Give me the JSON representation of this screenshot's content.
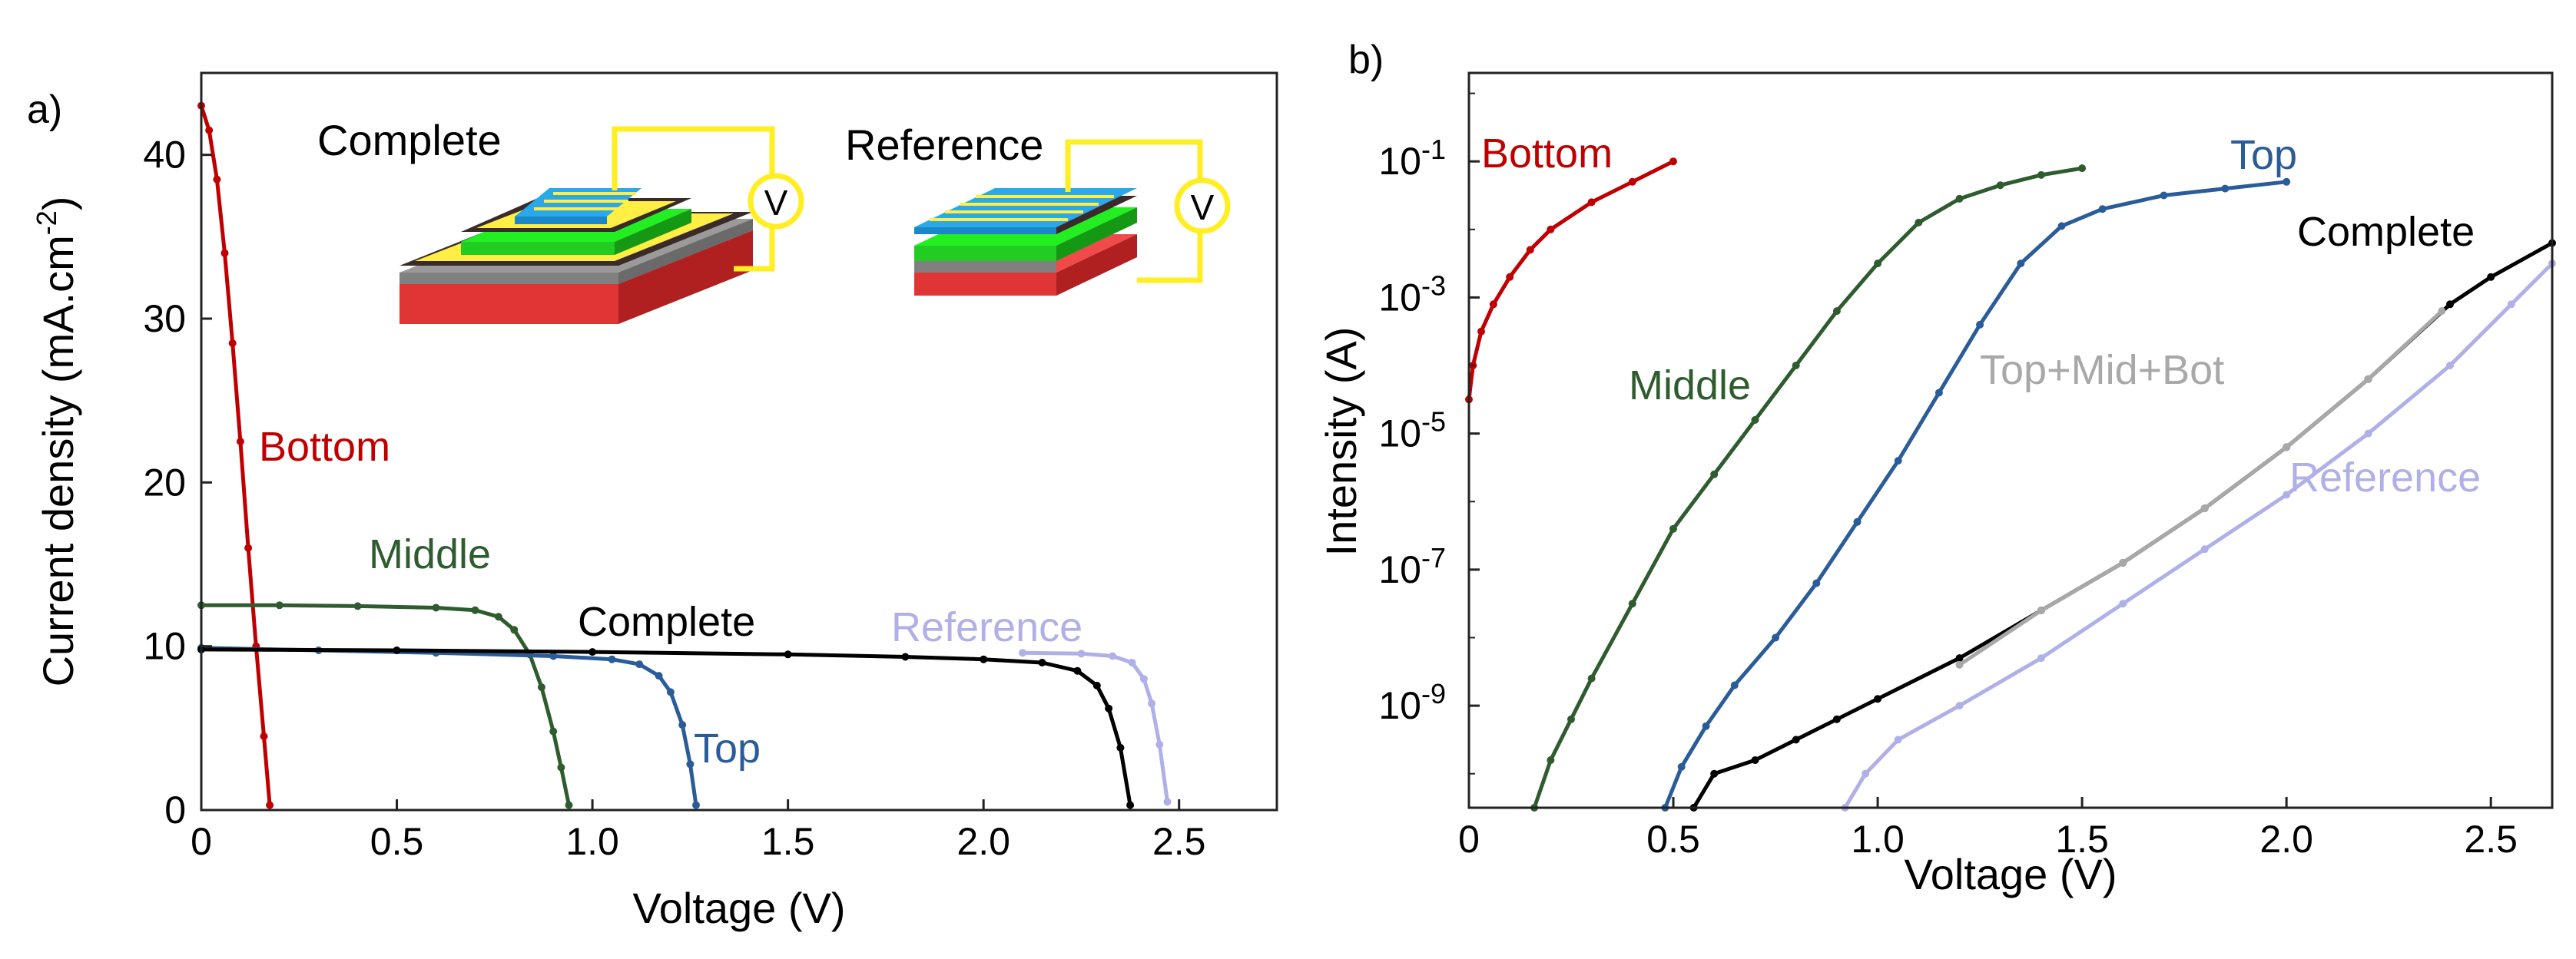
{
  "chart_data": [
    {
      "type": "line",
      "panel_label": "a)",
      "xlabel": "Voltage (V)",
      "ylabel_main": "Current density (mA.cm",
      "ylabel_sup": "-2",
      "ylabel_end": ")",
      "xlim": [
        0,
        2.75
      ],
      "ylim": [
        0,
        45
      ],
      "xticks": [
        0,
        0.5,
        1.0,
        1.5,
        2.0,
        2.5
      ],
      "xtick_labels": [
        "0",
        "0.5",
        "1.0",
        "1.5",
        "2.0",
        "2.5"
      ],
      "yticks": [
        0,
        10,
        20,
        30,
        40
      ],
      "ytick_labels": [
        "0",
        "10",
        "20",
        "30",
        "40"
      ],
      "series": [
        {
          "name": "Bottom",
          "color": "#c00000",
          "points": [
            [
              0,
              43.0
            ],
            [
              0.02,
              41.5
            ],
            [
              0.04,
              38.5
            ],
            [
              0.06,
              34.0
            ],
            [
              0.08,
              28.5
            ],
            [
              0.1,
              22.5
            ],
            [
              0.12,
              16.0
            ],
            [
              0.14,
              10.0
            ],
            [
              0.16,
              4.5
            ],
            [
              0.175,
              0.3
            ]
          ]
        },
        {
          "name": "Middle",
          "color": "#2e5c2e",
          "points": [
            [
              0,
              12.5
            ],
            [
              0.2,
              12.5
            ],
            [
              0.4,
              12.45
            ],
            [
              0.6,
              12.35
            ],
            [
              0.7,
              12.2
            ],
            [
              0.76,
              11.8
            ],
            [
              0.8,
              11.0
            ],
            [
              0.84,
              9.5
            ],
            [
              0.87,
              7.5
            ],
            [
              0.9,
              4.8
            ],
            [
              0.92,
              2.6
            ],
            [
              0.94,
              0.3
            ]
          ]
        },
        {
          "name": "Top",
          "color": "#2a5c9a",
          "points": [
            [
              0,
              9.9
            ],
            [
              0.3,
              9.75
            ],
            [
              0.6,
              9.6
            ],
            [
              0.9,
              9.4
            ],
            [
              1.05,
              9.2
            ],
            [
              1.12,
              8.9
            ],
            [
              1.17,
              8.2
            ],
            [
              1.2,
              7.2
            ],
            [
              1.23,
              5.2
            ],
            [
              1.25,
              2.8
            ],
            [
              1.265,
              0.3
            ]
          ]
        },
        {
          "name": "Complete",
          "color": "#000000",
          "points": [
            [
              0,
              9.8
            ],
            [
              0.5,
              9.75
            ],
            [
              1.0,
              9.65
            ],
            [
              1.5,
              9.5
            ],
            [
              1.8,
              9.35
            ],
            [
              2.0,
              9.2
            ],
            [
              2.15,
              9.0
            ],
            [
              2.24,
              8.5
            ],
            [
              2.29,
              7.6
            ],
            [
              2.32,
              6.2
            ],
            [
              2.35,
              3.8
            ],
            [
              2.375,
              0.3
            ]
          ]
        },
        {
          "name": "Reference",
          "color": "#b0b0e8",
          "points": [
            [
              2.1,
              9.6
            ],
            [
              2.25,
              9.55
            ],
            [
              2.33,
              9.4
            ],
            [
              2.38,
              9.0
            ],
            [
              2.41,
              8.0
            ],
            [
              2.43,
              6.5
            ],
            [
              2.45,
              4.0
            ],
            [
              2.47,
              0.5
            ]
          ]
        }
      ],
      "series_labels": {
        "bottom": "Bottom",
        "middle": "Middle",
        "complete": "Complete",
        "reference": "Reference",
        "top": "Top"
      },
      "inset": {
        "complete_label": "Complete",
        "reference_label": "Reference",
        "voltmeter_symbol": "V"
      }
    },
    {
      "type": "line",
      "panel_label": "b)",
      "xlabel": "Voltage (V)",
      "ylabel": "Intensity (A)",
      "xlim": [
        0,
        2.65
      ],
      "ylim_log10": [
        -10.5,
        0.3
      ],
      "xticks": [
        0,
        0.5,
        1.0,
        1.5,
        2.0,
        2.5
      ],
      "xtick_labels": [
        "0",
        "0.5",
        "1.0",
        "1.5",
        "2.0",
        "2.5"
      ],
      "yticks_log10": [
        -1,
        -3,
        -5,
        -7,
        -9
      ],
      "ytick_base": "10",
      "ytick_exponents": [
        "-1",
        "-3",
        "-5",
        "-7",
        "-9"
      ],
      "series": [
        {
          "name": "Bottom",
          "color": "#c00000",
          "points": [
            [
              0.0,
              -4.5
            ],
            [
              0.01,
              -4.0
            ],
            [
              0.03,
              -3.5
            ],
            [
              0.06,
              -3.1
            ],
            [
              0.1,
              -2.7
            ],
            [
              0.15,
              -2.3
            ],
            [
              0.2,
              -2.0
            ],
            [
              0.3,
              -1.6
            ],
            [
              0.4,
              -1.3
            ],
            [
              0.5,
              -1.0
            ]
          ]
        },
        {
          "name": "Middle",
          "color": "#2e5c2e",
          "points": [
            [
              0.16,
              -10.5
            ],
            [
              0.2,
              -9.8
            ],
            [
              0.25,
              -9.2
            ],
            [
              0.3,
              -8.6
            ],
            [
              0.4,
              -7.5
            ],
            [
              0.5,
              -6.4
            ],
            [
              0.6,
              -5.6
            ],
            [
              0.7,
              -4.8
            ],
            [
              0.8,
              -4.0
            ],
            [
              0.9,
              -3.2
            ],
            [
              1.0,
              -2.5
            ],
            [
              1.1,
              -1.9
            ],
            [
              1.2,
              -1.55
            ],
            [
              1.3,
              -1.35
            ],
            [
              1.4,
              -1.2
            ],
            [
              1.5,
              -1.1
            ]
          ]
        },
        {
          "name": "Top",
          "color": "#2a5c9a",
          "points": [
            [
              0.48,
              -10.5
            ],
            [
              0.52,
              -9.9
            ],
            [
              0.58,
              -9.3
            ],
            [
              0.65,
              -8.7
            ],
            [
              0.75,
              -8.0
            ],
            [
              0.85,
              -7.2
            ],
            [
              0.95,
              -6.3
            ],
            [
              1.05,
              -5.4
            ],
            [
              1.15,
              -4.4
            ],
            [
              1.25,
              -3.4
            ],
            [
              1.35,
              -2.5
            ],
            [
              1.45,
              -1.95
            ],
            [
              1.55,
              -1.7
            ],
            [
              1.7,
              -1.5
            ],
            [
              1.85,
              -1.4
            ],
            [
              2.0,
              -1.3
            ]
          ]
        },
        {
          "name": "Complete",
          "color": "#000000",
          "points": [
            [
              0.55,
              -10.5
            ],
            [
              0.6,
              -10.0
            ],
            [
              0.7,
              -9.8
            ],
            [
              0.8,
              -9.5
            ],
            [
              0.9,
              -9.2
            ],
            [
              1.0,
              -8.9
            ],
            [
              1.2,
              -8.3
            ],
            [
              1.4,
              -7.6
            ],
            [
              1.6,
              -6.9
            ],
            [
              1.8,
              -6.1
            ],
            [
              2.0,
              -5.2
            ],
            [
              2.2,
              -4.2
            ],
            [
              2.4,
              -3.1
            ],
            [
              2.5,
              -2.7
            ],
            [
              2.65,
              -2.2
            ]
          ]
        },
        {
          "name": "Top+Mid+Bot",
          "color": "#a8a8a8",
          "points": [
            [
              1.2,
              -8.4
            ],
            [
              1.4,
              -7.6
            ],
            [
              1.6,
              -6.9
            ],
            [
              1.8,
              -6.1
            ],
            [
              2.0,
              -5.2
            ],
            [
              2.2,
              -4.2
            ],
            [
              2.38,
              -3.2
            ]
          ]
        },
        {
          "name": "Reference",
          "color": "#b0b0e8",
          "points": [
            [
              0.92,
              -10.5
            ],
            [
              0.97,
              -10.0
            ],
            [
              1.05,
              -9.5
            ],
            [
              1.2,
              -9.0
            ],
            [
              1.4,
              -8.3
            ],
            [
              1.6,
              -7.5
            ],
            [
              1.8,
              -6.7
            ],
            [
              2.0,
              -5.9
            ],
            [
              2.2,
              -5.0
            ],
            [
              2.4,
              -4.0
            ],
            [
              2.55,
              -3.1
            ],
            [
              2.65,
              -2.5
            ]
          ]
        }
      ],
      "series_labels": {
        "bottom": "Bottom",
        "middle": "Middle",
        "top": "Top",
        "complete": "Complete",
        "topmidbot": "Top+Mid+Bot",
        "reference": "Reference"
      }
    }
  ]
}
